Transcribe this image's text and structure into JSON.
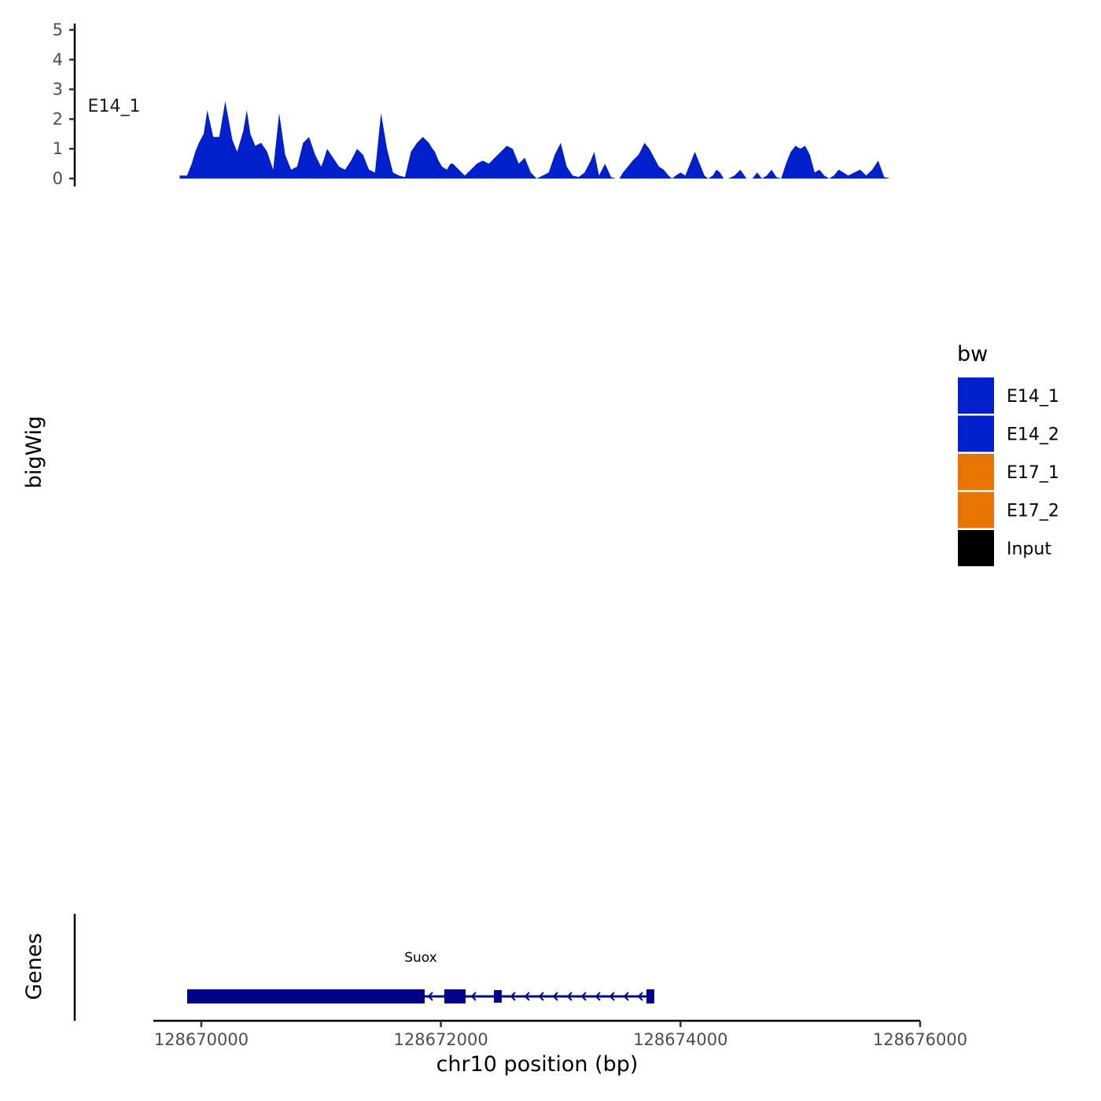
{
  "chart_data": {
    "type": "area",
    "y_axis_title": "bigWig",
    "gene_track_title": "Genes",
    "x_axis_title": "chr10 position (bp)",
    "x_range": [
      128669800,
      128675900
    ],
    "x_axis_limits": [
      128669600,
      128676000
    ],
    "x_ticks": [
      128670000,
      128672000,
      128674000,
      128676000
    ],
    "x_tick_labels": [
      "128670000",
      "128672000",
      "128674000",
      "128676000"
    ],
    "y_range": [
      0,
      5
    ],
    "y_ticks": [
      0,
      1,
      2,
      3,
      4,
      5
    ],
    "y_tick_labels": [
      "0",
      "1",
      "2",
      "3",
      "4",
      "5"
    ],
    "legend": {
      "title": "bw",
      "entries": [
        {
          "label": "E14_1",
          "color": "#0020CC"
        },
        {
          "label": "E14_2",
          "color": "#0020CC"
        },
        {
          "label": "E17_1",
          "color": "#E87404"
        },
        {
          "label": "E17_2",
          "color": "#E87404"
        },
        {
          "label": "Input",
          "color": "#000000"
        }
      ]
    },
    "series": [
      {
        "name": "E14_1",
        "color": "#0020CC",
        "x": [
          128669820,
          128669880,
          128669920,
          128669950,
          128669980,
          128670020,
          128670050,
          128670100,
          128670150,
          128670200,
          128670260,
          128670300,
          128670350,
          128670380,
          128670410,
          128670450,
          128670500,
          128670550,
          128670600,
          128670650,
          128670700,
          128670750,
          128670800,
          128670850,
          128670900,
          128670950,
          128671000,
          128671020,
          128671050,
          128671100,
          128671150,
          128671200,
          128671250,
          128671300,
          128671350,
          128671400,
          128671450,
          128671500,
          128671550,
          128671600,
          128671650,
          128671700,
          128671750,
          128671800,
          128671850,
          128671900,
          128671930,
          128671950,
          128671980,
          128672010,
          128672050,
          128672080,
          128672100,
          128672150,
          128672200,
          128672250,
          128672300,
          128672350,
          128672400,
          128672450,
          128672500,
          128672550,
          128672600,
          128672650,
          128672700,
          128672750,
          128672800,
          128672850,
          128672900,
          128672950,
          128673000,
          128673050,
          128673100,
          128673150,
          128673200,
          128673250,
          128673280,
          128673320,
          128673370,
          128673420,
          128673460,
          128673490,
          128673520,
          128673560,
          128673600,
          128673650,
          128673700,
          128673740,
          128673780,
          128673820,
          128673860,
          128673900,
          128673930,
          128673960,
          128674000,
          128674040,
          128674080,
          128674120,
          128674160,
          128674200,
          128674230,
          128674270,
          128674300,
          128674330,
          128674360,
          128674400,
          128674450,
          128674500,
          128674550,
          128674600,
          128674640,
          128674680,
          128674720,
          128674760,
          128674800,
          128674840,
          128674880,
          128674920,
          128674960,
          128675000,
          128675040,
          128675080,
          128675120,
          128675160,
          128675200,
          128675240,
          128675280,
          128675320,
          128675360,
          128675400,
          128675450,
          128675500,
          128675550,
          128675600,
          128675650,
          128675700,
          128675750,
          128675800,
          128675850,
          128675880
        ],
        "y": [
          0.1,
          0.1,
          0.5,
          0.9,
          1.2,
          1.5,
          2.3,
          1.4,
          1.4,
          2.6,
          1.3,
          0.9,
          1.6,
          2.3,
          1.5,
          1.1,
          1.2,
          0.9,
          0.3,
          2.2,
          0.8,
          0.3,
          0.4,
          1.2,
          1.4,
          0.8,
          0.4,
          0.6,
          1.0,
          0.7,
          0.4,
          0.3,
          0.6,
          1.0,
          0.8,
          0.3,
          0.2,
          2.2,
          1.0,
          0.2,
          0.1,
          0.05,
          0.9,
          1.2,
          1.4,
          1.2,
          1.0,
          0.9,
          0.6,
          0.4,
          0.3,
          0.5,
          0.5,
          0.3,
          0.1,
          0.3,
          0.5,
          0.6,
          0.5,
          0.7,
          0.9,
          1.1,
          1.0,
          0.5,
          0.7,
          0.2,
          0.0,
          0.1,
          0.2,
          0.8,
          1.2,
          0.4,
          0.1,
          0.05,
          0.2,
          0.6,
          0.9,
          0.1,
          0.5,
          0.05,
          0.0,
          0.0,
          0.2,
          0.4,
          0.6,
          0.8,
          1.2,
          1.0,
          0.7,
          0.4,
          0.3,
          0.1,
          0.0,
          0.1,
          0.2,
          0.1,
          0.5,
          0.9,
          0.5,
          0.1,
          0.0,
          0.1,
          0.3,
          0.2,
          0.0,
          0.0,
          0.1,
          0.3,
          0.0,
          0.0,
          0.2,
          0.0,
          0.1,
          0.3,
          0.05,
          0.0,
          0.5,
          0.9,
          1.1,
          1.0,
          1.1,
          0.8,
          0.2,
          0.3,
          0.1,
          0.0,
          0.1,
          0.3,
          0.2,
          0.1,
          0.2,
          0.3,
          0.1,
          0.3,
          0.6,
          0.05,
          0.0,
          0.0,
          0.0,
          0.0
        ],
        "note": "values estimated from plot"
      }
    ]
  }
}
